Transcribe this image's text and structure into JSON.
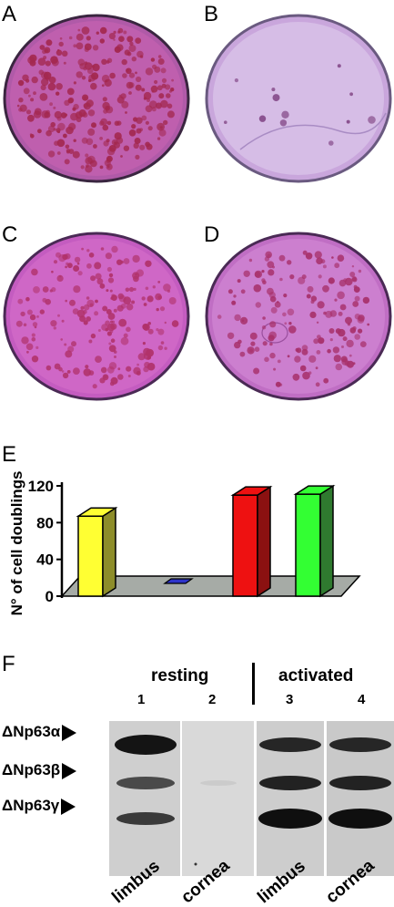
{
  "panels": {
    "a": {
      "letter": "A"
    },
    "b": {
      "letter": "B"
    },
    "c": {
      "letter": "C"
    },
    "d": {
      "letter": "D"
    },
    "e": {
      "letter": "E"
    },
    "f": {
      "letter": "F"
    }
  },
  "chart_data": {
    "type": "bar",
    "categories": [
      "",
      "",
      "",
      ""
    ],
    "values": [
      87,
      2,
      110,
      111
    ],
    "colors": [
      "#ffff33",
      "#2d33c9",
      "#ee1111",
      "#33ff33"
    ],
    "side_colors": [
      "#8d8d2a",
      "#1d1f80",
      "#8b1111",
      "#2f7a2f"
    ],
    "title": "",
    "xlabel": "",
    "ylabel": "N° of cell doublings",
    "yticks": [
      "0",
      "40",
      "80",
      "120"
    ],
    "ylim": [
      0,
      120
    ],
    "grid": false,
    "floor_color": "#a6aba6"
  },
  "blot": {
    "group_resting": "resting",
    "group_activated": "activated",
    "lanes": [
      {
        "number": "1",
        "label": "limbus"
      },
      {
        "number": "2",
        "label": "cornea"
      },
      {
        "number": "3",
        "label": "limbus"
      },
      {
        "number": "4",
        "label": "cornea"
      }
    ],
    "bands": [
      "ΔNp63α",
      "ΔNp63β",
      "ΔNp63γ"
    ]
  }
}
